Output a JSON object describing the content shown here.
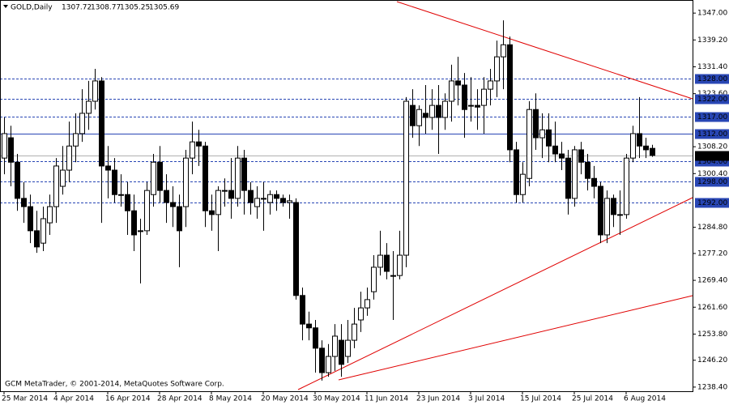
{
  "chart_data": {
    "type": "candlestick",
    "symbol": "GOLD,Daily",
    "footer": "GCM MetaTrader, © 2001-2014, MetaQuotes Software Corp.",
    "categories": [
      "25 Mar 2014",
      null,
      null,
      null,
      null,
      null,
      null,
      null,
      "4 Apr 2014",
      null,
      null,
      null,
      null,
      null,
      null,
      null,
      "16 Apr 2014",
      null,
      null,
      null,
      null,
      null,
      null,
      null,
      "28 Apr 2014",
      null,
      null,
      null,
      null,
      null,
      null,
      null,
      "8 May 2014",
      null,
      null,
      null,
      null,
      null,
      null,
      null,
      "20 May 2014",
      null,
      null,
      null,
      null,
      null,
      null,
      null,
      "30 May 2014",
      null,
      null,
      null,
      null,
      null,
      null,
      null,
      "11 Jun 2014",
      null,
      null,
      null,
      null,
      null,
      null,
      null,
      "23 Jun 2014",
      null,
      null,
      null,
      null,
      null,
      null,
      null,
      "3 Jul 2014",
      null,
      null,
      null,
      null,
      null,
      null,
      null,
      "15 Jul 2014",
      null,
      null,
      null,
      null,
      null,
      null,
      null,
      "25 Jul 2014",
      null,
      null,
      null,
      null,
      null,
      null,
      null,
      "6 Aug 2014",
      null,
      null,
      null,
      null
    ],
    "open": [
      1304.9,
      1310.8,
      1303.7,
      1293.2,
      1290.8,
      1283.8,
      1280.2,
      1286.1,
      1290.8,
      1296.7,
      1301.4,
      1308.4,
      1312.0,
      1317.9,
      1321.4,
      1327.3,
      1302.6,
      1301.4,
      1294.3,
      1294.3,
      1289.6,
      1283.8,
      1283.8,
      1294.3,
      1303.7,
      1295.5,
      1292.0,
      1290.8,
      1290.8,
      1304.9,
      1309.6,
      1308.4,
      1289.6,
      1288.5,
      1295.5,
      1295.5,
      1293.2,
      1304.9,
      1295.5,
      1290.8,
      1293.2,
      1292.0,
      1294.3,
      1293.2,
      1292.0,
      1292.0,
      1265.0,
      1256.7,
      1255.6,
      1249.7,
      1242.6,
      1247.3,
      1252.0,
      1247.3,
      1252.0,
      1257.9,
      1261.4,
      1266.1,
      1273.2,
      1276.7,
      1270.8,
      1270.8,
      1276.7,
      1320.2,
      1314.3,
      1317.9,
      1316.7,
      1320.2,
      1316.7,
      1321.4,
      1327.3,
      1326.1,
      1320.2,
      1320.2,
      1320.2,
      1324.9,
      1327.3,
      1334.3,
      1337.8,
      1307.3,
      1294.3,
      1299.0,
      1319.0,
      1310.8,
      1313.1,
      1308.4,
      1306.1,
      1304.9,
      1293.2,
      1307.3,
      1303.7,
      1299.0,
      1296.7,
      1282.6,
      1293.2,
      1288.5,
      1288.5,
      1304.9,
      1312.0,
      1308.4,
      1307.72
    ],
    "high": [
      1316.7,
      1314.3,
      1306.1,
      1297.9,
      1294.3,
      1289.6,
      1290.8,
      1294.3,
      1304.9,
      1308.4,
      1315.5,
      1317.9,
      1324.9,
      1327.3,
      1330.8,
      1328.4,
      1308.4,
      1304.9,
      1300.2,
      1297.9,
      1294.3,
      1287.3,
      1297.9,
      1306.1,
      1308.4,
      1300.2,
      1296.7,
      1294.3,
      1307.3,
      1315.5,
      1313.1,
      1309.6,
      1294.3,
      1296.7,
      1299.0,
      1304.9,
      1308.4,
      1307.3,
      1297.9,
      1296.7,
      1297.9,
      1295.5,
      1295.5,
      1294.3,
      1294.3,
      1293.2,
      1267.3,
      1260.3,
      1257.9,
      1252.0,
      1250.9,
      1256.7,
      1256.7,
      1257.9,
      1261.4,
      1266.1,
      1267.3,
      1276.7,
      1283.8,
      1280.2,
      1277.9,
      1283.8,
      1322.6,
      1324.9,
      1320.2,
      1326.1,
      1324.9,
      1326.1,
      1323.7,
      1332.0,
      1334.3,
      1329.6,
      1328.4,
      1324.9,
      1328.4,
      1330.8,
      1339.0,
      1344.9,
      1340.2,
      1309.6,
      1303.7,
      1321.4,
      1323.7,
      1317.9,
      1317.9,
      1315.5,
      1309.6,
      1307.3,
      1308.4,
      1309.6,
      1306.1,
      1302.6,
      1297.9,
      1295.5,
      1294.3,
      1295.5,
      1306.1,
      1314.3,
      1322.6,
      1310.8,
      1308.77
    ],
    "low": [
      1300.2,
      1296.7,
      1289.6,
      1286.1,
      1280.2,
      1277.4,
      1277.9,
      1282.6,
      1286.1,
      1294.3,
      1297.9,
      1303.7,
      1309.6,
      1313.1,
      1319.0,
      1286.1,
      1293.2,
      1292.0,
      1290.8,
      1282.6,
      1277.9,
      1268.5,
      1282.6,
      1290.8,
      1292.0,
      1286.1,
      1284.9,
      1273.2,
      1284.9,
      1300.2,
      1302.6,
      1284.9,
      1283.8,
      1277.9,
      1290.8,
      1287.3,
      1290.8,
      1288.5,
      1288.5,
      1287.3,
      1283.8,
      1288.5,
      1289.6,
      1290.8,
      1287.3,
      1263.8,
      1252.0,
      1252.0,
      1242.6,
      1240.3,
      1241.4,
      1243.1,
      1241.4,
      1245.4,
      1249.7,
      1254.4,
      1259.1,
      1263.8,
      1270.8,
      1269.7,
      1257.9,
      1269.7,
      1273.2,
      1310.8,
      1308.4,
      1312.0,
      1313.1,
      1306.1,
      1313.1,
      1315.5,
      1320.2,
      1310.8,
      1315.5,
      1313.1,
      1312.0,
      1320.2,
      1322.6,
      1324.9,
      1303.7,
      1292.0,
      1292.0,
      1296.7,
      1307.3,
      1304.9,
      1303.7,
      1303.7,
      1301.4,
      1288.5,
      1290.8,
      1300.2,
      1295.5,
      1293.2,
      1280.2,
      1280.2,
      1284.9,
      1282.6,
      1287.3,
      1303.7,
      1304.9,
      1304.9,
      1305.25
    ],
    "close": [
      1312.0,
      1303.7,
      1293.2,
      1290.8,
      1283.8,
      1279.1,
      1287.3,
      1290.8,
      1302.6,
      1301.4,
      1308.4,
      1312.0,
      1317.9,
      1321.4,
      1327.3,
      1302.6,
      1301.4,
      1294.3,
      1294.1,
      1289.6,
      1282.6,
      1283.6,
      1295.5,
      1303.7,
      1295.5,
      1292.0,
      1290.8,
      1283.8,
      1304.9,
      1309.6,
      1308.4,
      1289.6,
      1288.5,
      1295.5,
      1295.3,
      1293.2,
      1304.9,
      1295.5,
      1292.0,
      1293.2,
      1293.0,
      1294.3,
      1293.2,
      1292.0,
      1292.5,
      1265.0,
      1256.7,
      1255.6,
      1249.7,
      1242.6,
      1247.3,
      1253.2,
      1245.0,
      1252.0,
      1256.7,
      1261.4,
      1263.8,
      1273.2,
      1276.7,
      1272.0,
      1270.6,
      1276.7,
      1321.4,
      1314.3,
      1319.0,
      1316.7,
      1320.2,
      1316.7,
      1321.4,
      1327.3,
      1326.1,
      1319.0,
      1320.0,
      1319.7,
      1324.9,
      1327.3,
      1334.3,
      1337.8,
      1307.3,
      1294.3,
      1300.2,
      1319.0,
      1310.8,
      1313.1,
      1308.4,
      1306.1,
      1304.9,
      1293.2,
      1307.3,
      1303.7,
      1299.0,
      1296.7,
      1282.6,
      1293.2,
      1288.5,
      1288.3,
      1304.9,
      1312.0,
      1308.4,
      1307.3,
      1305.69
    ],
    "up_color": "#ffffff",
    "down_color": "#000000",
    "level_color": "#2846b4",
    "price_line_color": "#b0b0b0",
    "ylim": [
      1237.2,
      1350.8
    ],
    "yticks": [
      {
        "value": 1347.0,
        "label": "1347.00"
      },
      {
        "value": 1339.2,
        "label": "1339.20"
      },
      {
        "value": 1331.4,
        "label": "1331.40"
      },
      {
        "value": 1323.6,
        "label": "1323.60"
      },
      {
        "value": 1308.2,
        "label": "1308.20"
      },
      {
        "value": 1300.4,
        "label": "1300.40"
      },
      {
        "value": 1284.8,
        "label": "1284.80"
      },
      {
        "value": 1277.2,
        "label": "1277.20"
      },
      {
        "value": 1269.4,
        "label": "1269.40"
      },
      {
        "value": 1261.6,
        "label": "1261.60"
      },
      {
        "value": 1253.8,
        "label": "1253.80"
      },
      {
        "value": 1246.2,
        "label": "1246.20"
      },
      {
        "value": 1238.4,
        "label": "1238.40"
      }
    ],
    "levels": [
      {
        "value": 1328,
        "label": "1328.00",
        "dashed": true
      },
      {
        "value": 1322,
        "label": "1322.00",
        "dashed": true
      },
      {
        "value": 1317,
        "label": "1317.00",
        "dashed": true
      },
      {
        "value": 1312,
        "label": "1312.00",
        "dashed": false
      },
      {
        "value": 1304,
        "label": "1304.00",
        "dashed": true
      },
      {
        "value": 1298,
        "label": "1298.00",
        "dashed": true
      },
      {
        "value": 1292,
        "label": "1292.00",
        "dashed": true
      }
    ],
    "price": {
      "value": 1305.69,
      "label": "1305.69"
    }
  }
}
